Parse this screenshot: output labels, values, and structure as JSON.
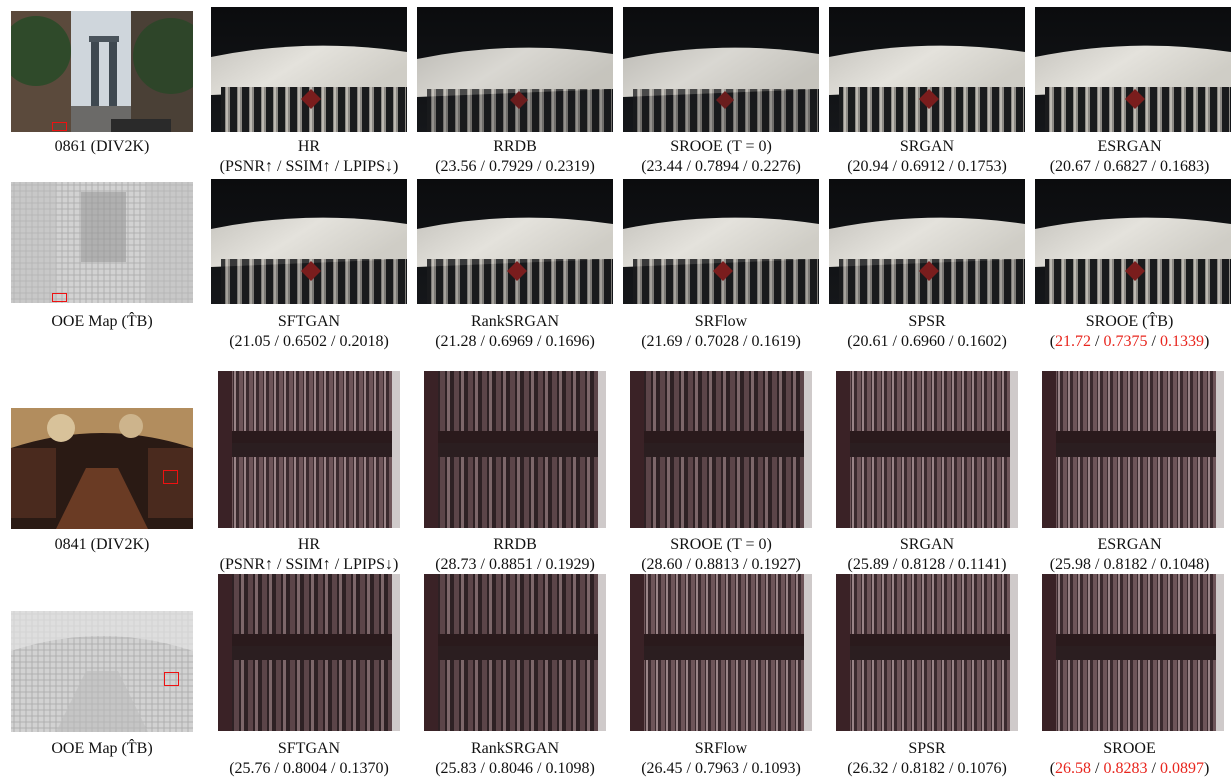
{
  "figure": {
    "example1": {
      "row1_captions": [
        {
          "name": "0861 (DIV2K)",
          "metrics": ""
        },
        {
          "name": "HR",
          "metrics": "(PSNR↑ / SSIM↑ / LPIPS↓)"
        },
        {
          "name": "RRDB",
          "metrics": "(23.56 / 0.7929 / 0.2319)"
        },
        {
          "name": "SROOE (T = 0)",
          "metrics": "(23.44 / 0.7894 / 0.2276)"
        },
        {
          "name": "SRGAN",
          "metrics": "(20.94 / 0.6912 / 0.1753)"
        },
        {
          "name": "ESRGAN",
          "metrics": "(20.67 / 0.6827 / 0.1683)"
        }
      ],
      "row2_captions": [
        {
          "name": "OOE Map (T̂B)",
          "metrics": ""
        },
        {
          "name": "SFTGAN",
          "metrics": "(21.05 / 0.6502 / 0.2018)"
        },
        {
          "name": "RankSRGAN",
          "metrics": "(21.28 / 0.6969 / 0.1696)"
        },
        {
          "name": "SRFlow",
          "metrics": "(21.69 / 0.7028 / 0.1619)"
        },
        {
          "name": "SPSR",
          "metrics": "(20.61 / 0.6960 / 0.1602)"
        },
        {
          "name": "SROOE (T̂B)",
          "metrics_values": [
            "21.72",
            "0.7375",
            "0.1339"
          ]
        }
      ]
    },
    "example2": {
      "row1_captions": [
        {
          "name": "0841 (DIV2K)",
          "metrics": ""
        },
        {
          "name": "HR",
          "metrics": "(PSNR↑ / SSIM↑ / LPIPS↓)"
        },
        {
          "name": "RRDB",
          "metrics": "(28.73 / 0.8851 / 0.1929)"
        },
        {
          "name": "SROOE (T = 0)",
          "metrics": "(28.60 / 0.8813 / 0.1927)"
        },
        {
          "name": "SRGAN",
          "metrics": "(25.89 / 0.8128 / 0.1141)"
        },
        {
          "name": "ESRGAN",
          "metrics": "(25.98 / 0.8182 / 0.1048)"
        }
      ],
      "row2_captions": [
        {
          "name": "OOE Map (T̂B)",
          "metrics": ""
        },
        {
          "name": "SFTGAN",
          "metrics": "(25.76 / 0.8004 / 0.1370)"
        },
        {
          "name": "RankSRGAN",
          "metrics": "(25.83 / 0.8046 / 0.1098)"
        },
        {
          "name": "SRFlow",
          "metrics": "(26.45 / 0.7963 / 0.1093)"
        },
        {
          "name": "SPSR",
          "metrics": "(26.32 / 0.8182 / 0.1076)"
        },
        {
          "name": "SROOE",
          "metrics_values": [
            "26.58",
            "0.8283",
            "0.0897"
          ]
        }
      ]
    },
    "highlight_color": "#e8261e"
  }
}
